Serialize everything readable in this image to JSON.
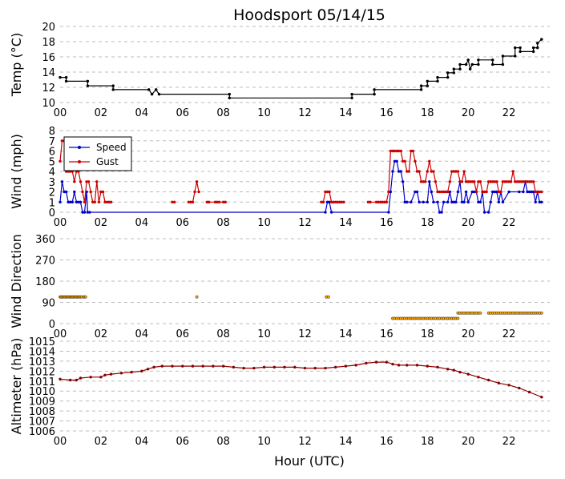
{
  "title": "Hoodsport 05/14/15",
  "xlabel": "Hour (UTC)",
  "x_ticks": [
    "00",
    "02",
    "04",
    "06",
    "08",
    "10",
    "12",
    "14",
    "16",
    "18",
    "20",
    "22"
  ],
  "chart_data": [
    {
      "type": "line",
      "ylabel": "Temp (°C)",
      "ylim": [
        10,
        20
      ],
      "yticks": [
        10,
        12,
        14,
        16,
        18,
        20
      ],
      "xlim": [
        0,
        24
      ],
      "grid": true,
      "series": [
        {
          "color": "#000000",
          "x": [
            0.0,
            0.3,
            0.3,
            1.35,
            1.35,
            2.6,
            2.6,
            4.35,
            4.5,
            4.7,
            4.85,
            8.3,
            8.3,
            14.3,
            14.3,
            15.4,
            15.4,
            17.7,
            17.7,
            18.0,
            18.0,
            18.5,
            18.5,
            19.0,
            19.0,
            19.3,
            19.3,
            19.6,
            19.6,
            19.9,
            20.0,
            20.1,
            20.2,
            20.5,
            20.5,
            21.2,
            21.2,
            21.7,
            21.7,
            22.3,
            22.3,
            22.55,
            22.55,
            23.2,
            23.2,
            23.4,
            23.4,
            23.6
          ],
          "y": [
            13.3,
            13.3,
            12.8,
            12.8,
            12.2,
            12.2,
            11.7,
            11.7,
            11.1,
            11.7,
            11.1,
            11.1,
            10.6,
            10.6,
            11.1,
            11.1,
            11.7,
            11.7,
            12.2,
            12.2,
            12.8,
            12.8,
            13.3,
            13.3,
            13.9,
            13.9,
            14.4,
            14.4,
            15.0,
            15.0,
            15.6,
            14.4,
            15.0,
            15.0,
            15.6,
            15.6,
            15.0,
            15.0,
            16.1,
            16.1,
            17.2,
            17.2,
            16.7,
            16.7,
            17.2,
            17.2,
            17.8,
            18.3
          ]
        }
      ]
    },
    {
      "type": "line",
      "ylabel": "Wind (mph)",
      "ylim": [
        0,
        8
      ],
      "yticks": [
        0,
        1,
        2,
        3,
        4,
        5,
        6,
        7,
        8
      ],
      "xlim": [
        0,
        24
      ],
      "grid": true,
      "legend_position": "top-left",
      "series": [
        {
          "name": "Speed",
          "color": "#0000cc",
          "x": [
            0.0,
            0.1,
            0.2,
            0.3,
            0.4,
            0.5,
            0.6,
            0.7,
            0.8,
            0.9,
            1.0,
            1.1,
            1.2,
            1.3,
            1.35,
            1.45,
            13.0,
            13.1,
            13.2,
            13.3,
            16.1,
            16.2,
            16.3,
            16.4,
            16.5,
            16.6,
            16.7,
            16.8,
            16.9,
            17.0,
            17.2,
            17.4,
            17.5,
            17.6,
            17.8,
            18.0,
            18.1,
            18.2,
            18.3,
            18.5,
            18.6,
            18.7,
            18.8,
            19.0,
            19.1,
            19.2,
            19.3,
            19.4,
            19.5,
            19.6,
            19.7,
            19.8,
            19.9,
            20.0,
            20.2,
            20.3,
            20.4,
            20.5,
            20.6,
            20.7,
            20.8,
            21.0,
            21.1,
            21.2,
            21.3,
            21.4,
            21.5,
            21.6,
            21.7,
            22.0,
            22.5,
            22.7,
            22.8,
            22.9,
            23.0,
            23.1,
            23.2,
            23.3,
            23.4,
            23.5,
            23.6
          ],
          "y": [
            1,
            3,
            2,
            2,
            1,
            1,
            1,
            2,
            1,
            1,
            1,
            0,
            0,
            2,
            0,
            0,
            0,
            1,
            1,
            0,
            0,
            2,
            4,
            5,
            5,
            4,
            4,
            3,
            1,
            1,
            1,
            2,
            2,
            1,
            1,
            1,
            3,
            2,
            1,
            1,
            0,
            0,
            1,
            1,
            2,
            1,
            1,
            1,
            2,
            3,
            1,
            1,
            2,
            1,
            2,
            2,
            2,
            1,
            1,
            2,
            0,
            0,
            1,
            2,
            2,
            2,
            1,
            2,
            1,
            2,
            2,
            2,
            3,
            2,
            2,
            2,
            2,
            1,
            2,
            1,
            1
          ]
        },
        {
          "name": "Gust",
          "color": "#cc0000",
          "x": [
            0.0,
            0.1,
            0.2,
            0.3,
            0.4,
            0.5,
            0.6,
            0.7,
            0.8,
            0.9,
            1.0,
            1.1,
            1.2,
            1.3,
            1.4,
            1.5,
            1.6,
            1.7,
            1.8,
            1.9,
            2.0,
            2.1,
            2.2,
            2.3,
            2.4,
            2.5
          ],
          "y": [
            5,
            7,
            7,
            4,
            4,
            4,
            4,
            3,
            4,
            4,
            3,
            2,
            1,
            3,
            3,
            2,
            1,
            1,
            3,
            1,
            2,
            2,
            1,
            1,
            1,
            1
          ]
        },
        {
          "name": "Gust",
          "color": "#cc0000",
          "x": [
            5.5,
            5.6
          ],
          "y": [
            1,
            1
          ]
        },
        {
          "name": "Gust",
          "color": "#cc0000",
          "x": [
            6.3,
            6.4,
            6.5,
            6.6,
            6.7,
            6.8
          ],
          "y": [
            1,
            1,
            1,
            2,
            3,
            2
          ]
        },
        {
          "name": "Gust",
          "color": "#cc0000",
          "x": [
            7.2,
            7.3,
            7.6,
            7.7,
            7.8,
            8.0,
            8.1
          ],
          "y": [
            1,
            1,
            1,
            1,
            1,
            1,
            1
          ]
        },
        {
          "name": "Gust",
          "color": "#cc0000",
          "x": [
            12.8,
            12.9,
            13.0,
            13.1,
            13.2,
            13.3,
            13.4,
            13.5,
            13.6,
            13.7,
            13.8,
            13.9
          ],
          "y": [
            1,
            1,
            2,
            2,
            2,
            1,
            1,
            1,
            1,
            1,
            1,
            1
          ]
        },
        {
          "name": "Gust",
          "color": "#cc0000",
          "x": [
            15.1,
            15.2,
            15.5,
            15.6,
            15.7,
            15.8,
            15.9,
            16.0,
            16.1,
            16.2,
            16.3,
            16.4,
            16.5,
            16.6,
            16.7,
            16.8,
            16.9,
            17.0,
            17.1,
            17.2,
            17.3,
            17.4,
            17.5,
            17.6,
            17.7,
            17.8,
            17.9,
            18.0,
            18.1,
            18.2,
            18.3,
            18.4,
            18.5,
            18.6,
            18.7,
            18.8,
            18.9,
            19.0,
            19.1,
            19.2,
            19.3,
            19.4,
            19.5,
            19.6,
            19.7,
            19.8,
            19.9,
            20.0,
            20.1,
            20.2,
            20.3,
            20.4,
            20.5,
            20.6,
            20.7,
            20.8,
            20.9,
            21.0,
            21.1,
            21.2,
            21.3,
            21.4,
            21.5,
            21.6,
            21.7,
            21.8,
            21.9,
            22.0,
            22.1,
            22.2,
            22.3,
            22.4,
            22.5,
            22.6,
            22.7,
            22.8,
            22.9,
            23.0,
            23.1,
            23.2,
            23.3,
            23.4,
            23.5,
            23.6
          ],
          "y": [
            1,
            1,
            1,
            1,
            1,
            1,
            1,
            1,
            2,
            6,
            6,
            6,
            6,
            6,
            6,
            5,
            5,
            4,
            4,
            6,
            6,
            5,
            4,
            4,
            3,
            3,
            3,
            4,
            5,
            4,
            4,
            3,
            2,
            2,
            2,
            2,
            2,
            2,
            3,
            4,
            4,
            4,
            4,
            3,
            3,
            4,
            3,
            3,
            3,
            3,
            3,
            2,
            3,
            3,
            2,
            2,
            2,
            3,
            3,
            3,
            3,
            3,
            2,
            2,
            3,
            3,
            3,
            3,
            3,
            4,
            3,
            3,
            3,
            3,
            3,
            3,
            3,
            3,
            3,
            3,
            2,
            2,
            2,
            2
          ]
        }
      ]
    },
    {
      "type": "scatter",
      "ylabel": "Wind Direction",
      "ylim": [
        0,
        360
      ],
      "yticks": [
        0,
        90,
        180,
        270,
        360
      ],
      "xlim": [
        0,
        24
      ],
      "grid": true,
      "series": [
        {
          "color": "#ffa500",
          "x": [
            0.0,
            0.05,
            0.1,
            0.15,
            0.2,
            0.25,
            0.3,
            0.35,
            0.4,
            0.45,
            0.5,
            0.55,
            0.6,
            0.65,
            0.7,
            0.75,
            0.8,
            0.85,
            0.9,
            0.95,
            1.0,
            1.05,
            1.15,
            1.2,
            1.25,
            6.7,
            13.05,
            13.15
          ],
          "y": [
            113,
            113,
            113,
            113,
            113,
            113,
            113,
            113,
            113,
            113,
            113,
            113,
            113,
            113,
            113,
            113,
            113,
            113,
            113,
            113,
            113,
            113,
            113,
            113,
            113,
            113,
            113,
            113
          ]
        },
        {
          "color": "#ffa500",
          "x": [
            16.3,
            16.4,
            16.5,
            16.6,
            16.7,
            16.8,
            16.9,
            17.0,
            17.1,
            17.2,
            17.3,
            17.4,
            17.5,
            17.6,
            17.7,
            17.8,
            17.9,
            18.0,
            18.1,
            18.2,
            18.3,
            18.4,
            18.5,
            18.6,
            18.7,
            18.8,
            18.9,
            19.0,
            19.1,
            19.2,
            19.3,
            19.4,
            19.5
          ],
          "y": [
            22,
            22,
            22,
            22,
            22,
            22,
            22,
            22,
            22,
            22,
            22,
            22,
            22,
            22,
            22,
            22,
            22,
            22,
            22,
            22,
            22,
            22,
            22,
            22,
            22,
            22,
            22,
            22,
            22,
            22,
            22,
            22,
            22
          ]
        },
        {
          "color": "#ffa500",
          "x": [
            19.5,
            19.6,
            19.7,
            19.8,
            19.9,
            20.0,
            20.1,
            20.2,
            20.3,
            20.4,
            20.5,
            20.6,
            21.0,
            21.1,
            21.2,
            21.3,
            21.4,
            21.5,
            21.6,
            21.7,
            21.8,
            21.9,
            22.0,
            22.1,
            22.2,
            22.3,
            22.4,
            22.5,
            22.6,
            22.7,
            22.8,
            22.9,
            23.0,
            23.1,
            23.2,
            23.3,
            23.4,
            23.5,
            23.6
          ],
          "y": [
            45,
            45,
            45,
            45,
            45,
            45,
            45,
            45,
            45,
            45,
            45,
            45,
            45,
            45,
            45,
            45,
            45,
            45,
            45,
            45,
            45,
            45,
            45,
            45,
            45,
            45,
            45,
            45,
            45,
            45,
            45,
            45,
            45,
            45,
            45,
            45,
            45,
            45,
            45
          ]
        }
      ]
    },
    {
      "type": "line",
      "ylabel": "Altimeter (hPa)",
      "ylim": [
        1006,
        1015
      ],
      "yticks": [
        1006,
        1007,
        1008,
        1009,
        1010,
        1011,
        1012,
        1013,
        1014,
        1015
      ],
      "xlim": [
        0,
        24
      ],
      "grid": true,
      "series": [
        {
          "color": "#8b0000",
          "x": [
            0.0,
            0.5,
            0.8,
            1.0,
            1.5,
            2.0,
            2.2,
            2.5,
            3.0,
            3.5,
            4.0,
            4.3,
            4.6,
            5.0,
            5.5,
            6.0,
            6.5,
            7.0,
            7.5,
            8.0,
            8.5,
            9.0,
            9.5,
            10.0,
            10.5,
            11.0,
            11.5,
            12.0,
            12.5,
            13.0,
            13.5,
            14.0,
            14.5,
            15.0,
            15.5,
            16.0,
            16.3,
            16.6,
            17.0,
            17.5,
            18.0,
            18.5,
            19.0,
            19.3,
            19.6,
            20.0,
            20.5,
            21.0,
            21.5,
            22.0,
            22.5,
            23.0,
            23.6
          ],
          "y": [
            1011.2,
            1011.1,
            1011.1,
            1011.3,
            1011.4,
            1011.4,
            1011.6,
            1011.7,
            1011.8,
            1011.9,
            1012.0,
            1012.2,
            1012.4,
            1012.5,
            1012.5,
            1012.5,
            1012.5,
            1012.5,
            1012.5,
            1012.5,
            1012.4,
            1012.3,
            1012.3,
            1012.4,
            1012.4,
            1012.4,
            1012.4,
            1012.3,
            1012.3,
            1012.3,
            1012.4,
            1012.5,
            1012.6,
            1012.8,
            1012.9,
            1012.9,
            1012.7,
            1012.6,
            1012.6,
            1012.6,
            1012.5,
            1012.4,
            1012.2,
            1012.1,
            1011.9,
            1011.7,
            1011.4,
            1011.1,
            1010.8,
            1010.6,
            1010.3,
            1009.9,
            1009.4
          ]
        }
      ]
    }
  ]
}
